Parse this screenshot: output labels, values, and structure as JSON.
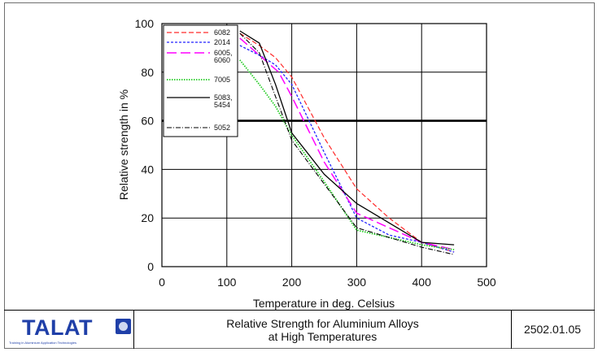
{
  "chart_data": {
    "type": "line",
    "xlabel": "Temperature in deg. Celsius",
    "ylabel": "Relative strength in %",
    "xlim": [
      0,
      500
    ],
    "ylim": [
      0,
      100
    ],
    "x_ticks": [
      "0",
      "100",
      "200",
      "300",
      "400",
      "500"
    ],
    "y_ticks": [
      "0",
      "20",
      "40",
      "60",
      "80",
      "100"
    ],
    "grid": true,
    "legend_position": "top-left",
    "reference_line_y": 60,
    "series": [
      {
        "name": "6082",
        "color": "#ff2a2a",
        "dash": "6,3",
        "width": 1.2,
        "points": [
          [
            120,
            96
          ],
          [
            150,
            91
          ],
          [
            175,
            86
          ],
          [
            200,
            78
          ],
          [
            250,
            53
          ],
          [
            300,
            32
          ],
          [
            350,
            20
          ],
          [
            400,
            10
          ],
          [
            450,
            6
          ]
        ]
      },
      {
        "name": "2014",
        "color": "#2323ff",
        "dash": "3,2",
        "width": 1.3,
        "points": [
          [
            120,
            91
          ],
          [
            150,
            87
          ],
          [
            175,
            83
          ],
          [
            200,
            75
          ],
          [
            250,
            47
          ],
          [
            300,
            20
          ],
          [
            350,
            13
          ],
          [
            400,
            10
          ],
          [
            450,
            6
          ]
        ]
      },
      {
        "name": "6005,\n6060",
        "color": "#ff00ff",
        "dash": "12,5",
        "width": 1.5,
        "points": [
          [
            120,
            94
          ],
          [
            150,
            87
          ],
          [
            180,
            80
          ],
          [
            200,
            70
          ],
          [
            250,
            43
          ],
          [
            300,
            22
          ],
          [
            350,
            16
          ],
          [
            400,
            10
          ],
          [
            450,
            7
          ]
        ]
      },
      {
        "name": "7005",
        "color": "#22cc22",
        "dash": "1.5,1.5",
        "width": 1.8,
        "points": [
          [
            120,
            85
          ],
          [
            150,
            75
          ],
          [
            175,
            66
          ],
          [
            200,
            54
          ],
          [
            250,
            35
          ],
          [
            300,
            15
          ],
          [
            350,
            12
          ],
          [
            400,
            9
          ],
          [
            450,
            7
          ]
        ]
      },
      {
        "name": "5083,\n5454",
        "color": "#000000",
        "dash": "",
        "width": 1.3,
        "points": [
          [
            120,
            97
          ],
          [
            150,
            92
          ],
          [
            175,
            75
          ],
          [
            200,
            55
          ],
          [
            250,
            38
          ],
          [
            300,
            26
          ],
          [
            350,
            18
          ],
          [
            400,
            10
          ],
          [
            450,
            9
          ]
        ]
      },
      {
        "name": "5052",
        "color": "#000000",
        "dash": "6,2,1,2",
        "width": 1.1,
        "points": [
          [
            120,
            96
          ],
          [
            150,
            88
          ],
          [
            175,
            70
          ],
          [
            200,
            52
          ],
          [
            250,
            34
          ],
          [
            300,
            16
          ],
          [
            350,
            12
          ],
          [
            400,
            8
          ],
          [
            450,
            5
          ]
        ]
      }
    ]
  },
  "footer": {
    "logo_text": "TALAT",
    "logo_tagline": "Training in Aluminium Application Technologies",
    "title_line1": "Relative Strength for Aluminium Alloys",
    "title_line2": "at High Temperatures",
    "code": "2502.01.05"
  }
}
